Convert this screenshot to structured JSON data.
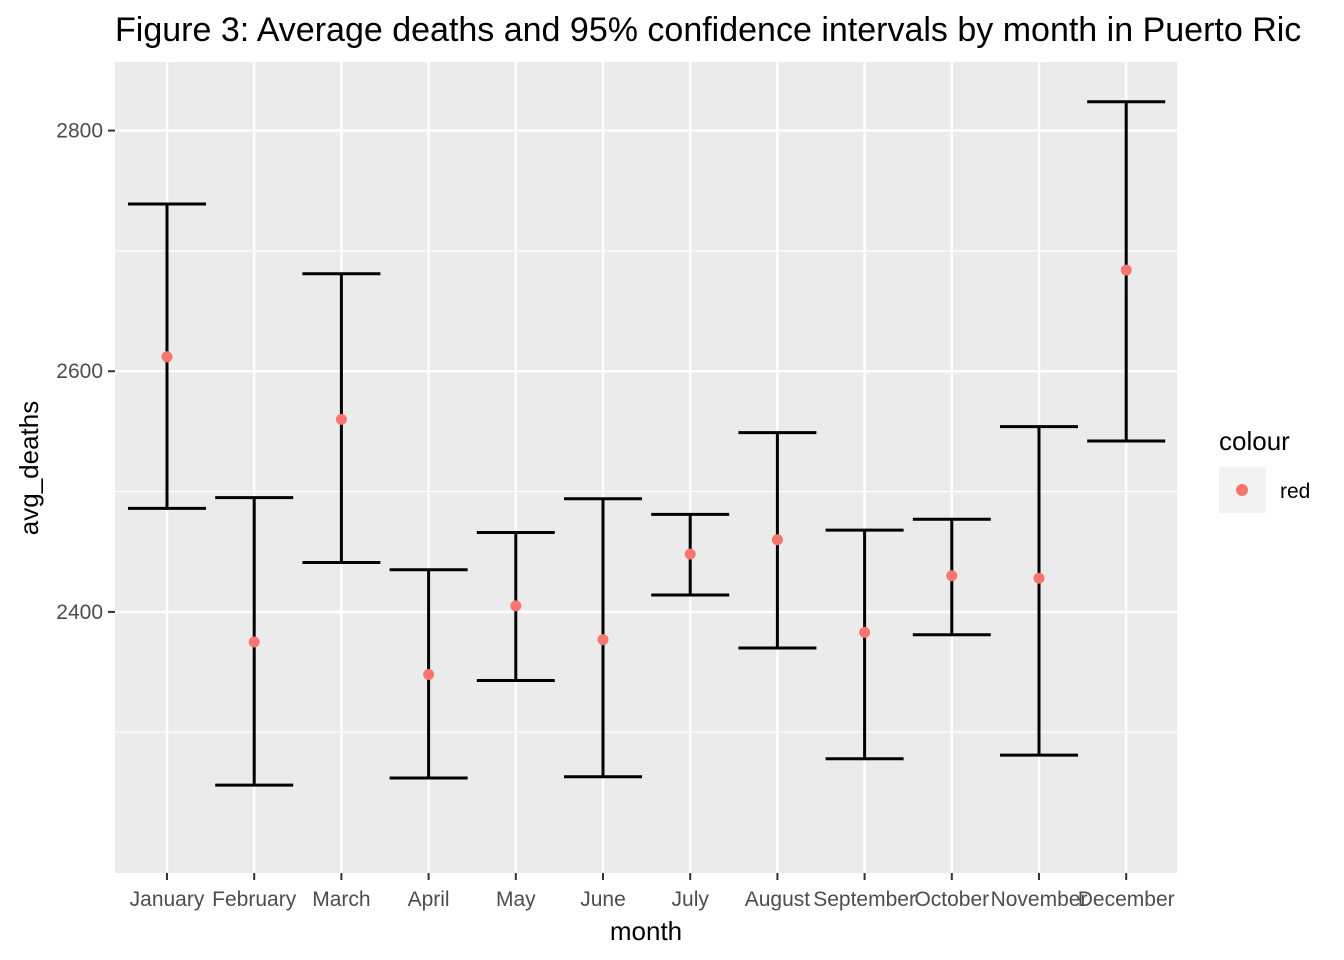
{
  "chart_data": {
    "type": "scatter",
    "title": "Figure 3: Average deaths and 95% confidence intervals by month in Puerto Ric",
    "xlabel": "month",
    "ylabel": "avg_deaths",
    "categories": [
      "January",
      "February",
      "March",
      "April",
      "May",
      "June",
      "July",
      "August",
      "September",
      "October",
      "November",
      "December"
    ],
    "series": [
      {
        "values": [
          2612,
          2375,
          2560,
          2348,
          2405,
          2377,
          2448,
          2460,
          2383,
          2430,
          2428,
          2684
        ],
        "lower": [
          2486,
          2256,
          2441,
          2262,
          2343,
          2263,
          2414,
          2370,
          2278,
          2381,
          2281,
          2542
        ],
        "upper": [
          2739,
          2495,
          2681,
          2435,
          2466,
          2494,
          2481,
          2549,
          2468,
          2477,
          2554,
          2824
        ],
        "point_color": "#F8766D",
        "errorbar_color": "#000000"
      }
    ],
    "ylim": [
      2183,
      2857
    ],
    "yticks": [
      2400,
      2600,
      2800
    ],
    "yminor": [
      2300,
      2500,
      2700
    ],
    "grid": true,
    "legend": {
      "title": "colour",
      "entries": [
        {
          "label": "red",
          "color": "#F8766D"
        }
      ],
      "placement": "right"
    },
    "panel_background": "#EBEBEB",
    "grid_color": "#FFFFFF"
  }
}
